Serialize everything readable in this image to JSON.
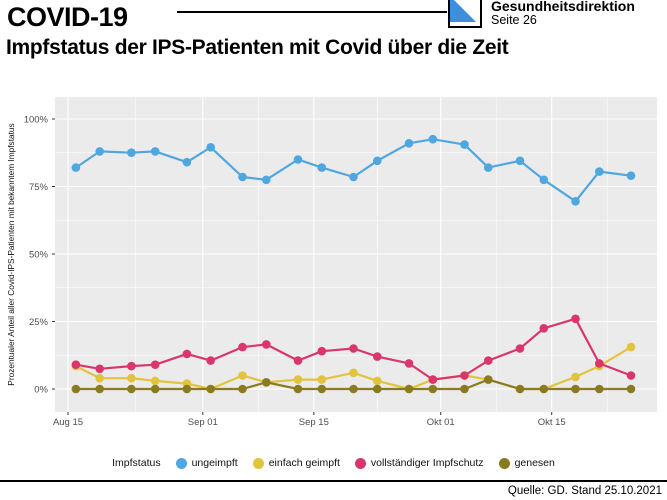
{
  "header": {
    "title": "COVID-19",
    "subtitle": "Impfstatus der IPS-Patienten mit Covid über die Zeit",
    "org": "Gesundheitsdirektion",
    "page": "Seite 26",
    "logo_blue": "#3E8EDE"
  },
  "footer": {
    "source": "Quelle: GD. Stand 25.10.2021"
  },
  "chart_data": {
    "type": "line",
    "title": "",
    "xlabel": "",
    "ylabel": "Prozentualer Anteil aller Covid-IPS-Patienten mit bekanntem Impfstatus",
    "ylim": [
      0,
      100
    ],
    "grid": true,
    "panel_background": "#EBEBEB",
    "gridline_color": "#FFFFFF",
    "tick_label_color": "#4D4D4D",
    "yticks": [
      {
        "value": 0,
        "label": "0%"
      },
      {
        "value": 25,
        "label": "25%"
      },
      {
        "value": 50,
        "label": "50%"
      },
      {
        "value": 75,
        "label": "75%"
      },
      {
        "value": 100,
        "label": "100%"
      }
    ],
    "y_minor": [
      12.5,
      37.5,
      62.5,
      87.5
    ],
    "xticks": [
      {
        "day": 0,
        "label": "Aug 15"
      },
      {
        "day": 17,
        "label": "Sep 01"
      },
      {
        "day": 31,
        "label": "Sep 15"
      },
      {
        "day": 47,
        "label": "Okt 01"
      },
      {
        "day": 61,
        "label": "Okt 15"
      }
    ],
    "x_minor_days": [
      8.5,
      24,
      39,
      54,
      68
    ],
    "x_dates": [
      "16.08.2021",
      "19.08.2021",
      "23.08.2021",
      "26.08.2021",
      "30.08.2021",
      "02.09.2021",
      "06.09.2021",
      "09.09.2021",
      "13.09.2021",
      "16.09.2021",
      "20.09.2021",
      "23.09.2021",
      "27.09.2021",
      "30.09.2021",
      "04.10.2021",
      "07.10.2021",
      "11.10.2021",
      "14.10.2021",
      "18.10.2021",
      "21.10.2021",
      "25.10.2021"
    ],
    "x_days": [
      1,
      4,
      8,
      11,
      15,
      18,
      22,
      25,
      29,
      32,
      36,
      39,
      43,
      46,
      50,
      53,
      57,
      60,
      64,
      67,
      71
    ],
    "legend_title": "Impfstatus",
    "legend_position": "bottom",
    "series": [
      {
        "name": "ungeimpft",
        "color": "#4FA7E0",
        "values": [
          82,
          88,
          87.5,
          88,
          84,
          89.5,
          78.5,
          77.5,
          85,
          82,
          78.5,
          84.5,
          91,
          92.5,
          90.5,
          82,
          84.5,
          77.5,
          69.5,
          80.5,
          79
        ]
      },
      {
        "name": "einfach geimpft",
        "color": "#E2C33E",
        "values": [
          8.5,
          4,
          4,
          3,
          2,
          0,
          5,
          2.5,
          3.5,
          3.5,
          6,
          3,
          0,
          3.5,
          5,
          3.5,
          0,
          0,
          4.5,
          8.5,
          15.5
        ]
      },
      {
        "name": "vollständiger Impfschutz",
        "color": "#D9376B",
        "values": [
          9,
          7.5,
          8.5,
          9,
          13,
          10.5,
          15.5,
          16.5,
          10.5,
          14,
          15,
          12,
          9.5,
          3.5,
          5,
          10.5,
          15,
          22.5,
          26,
          9.5,
          5
        ]
      },
      {
        "name": "genesen",
        "color": "#8A7A20",
        "values": [
          0,
          0,
          0,
          0,
          0,
          0,
          0,
          2.5,
          0,
          0,
          0,
          0,
          0,
          0,
          0,
          3.5,
          0,
          0,
          0,
          0,
          0
        ]
      }
    ]
  }
}
